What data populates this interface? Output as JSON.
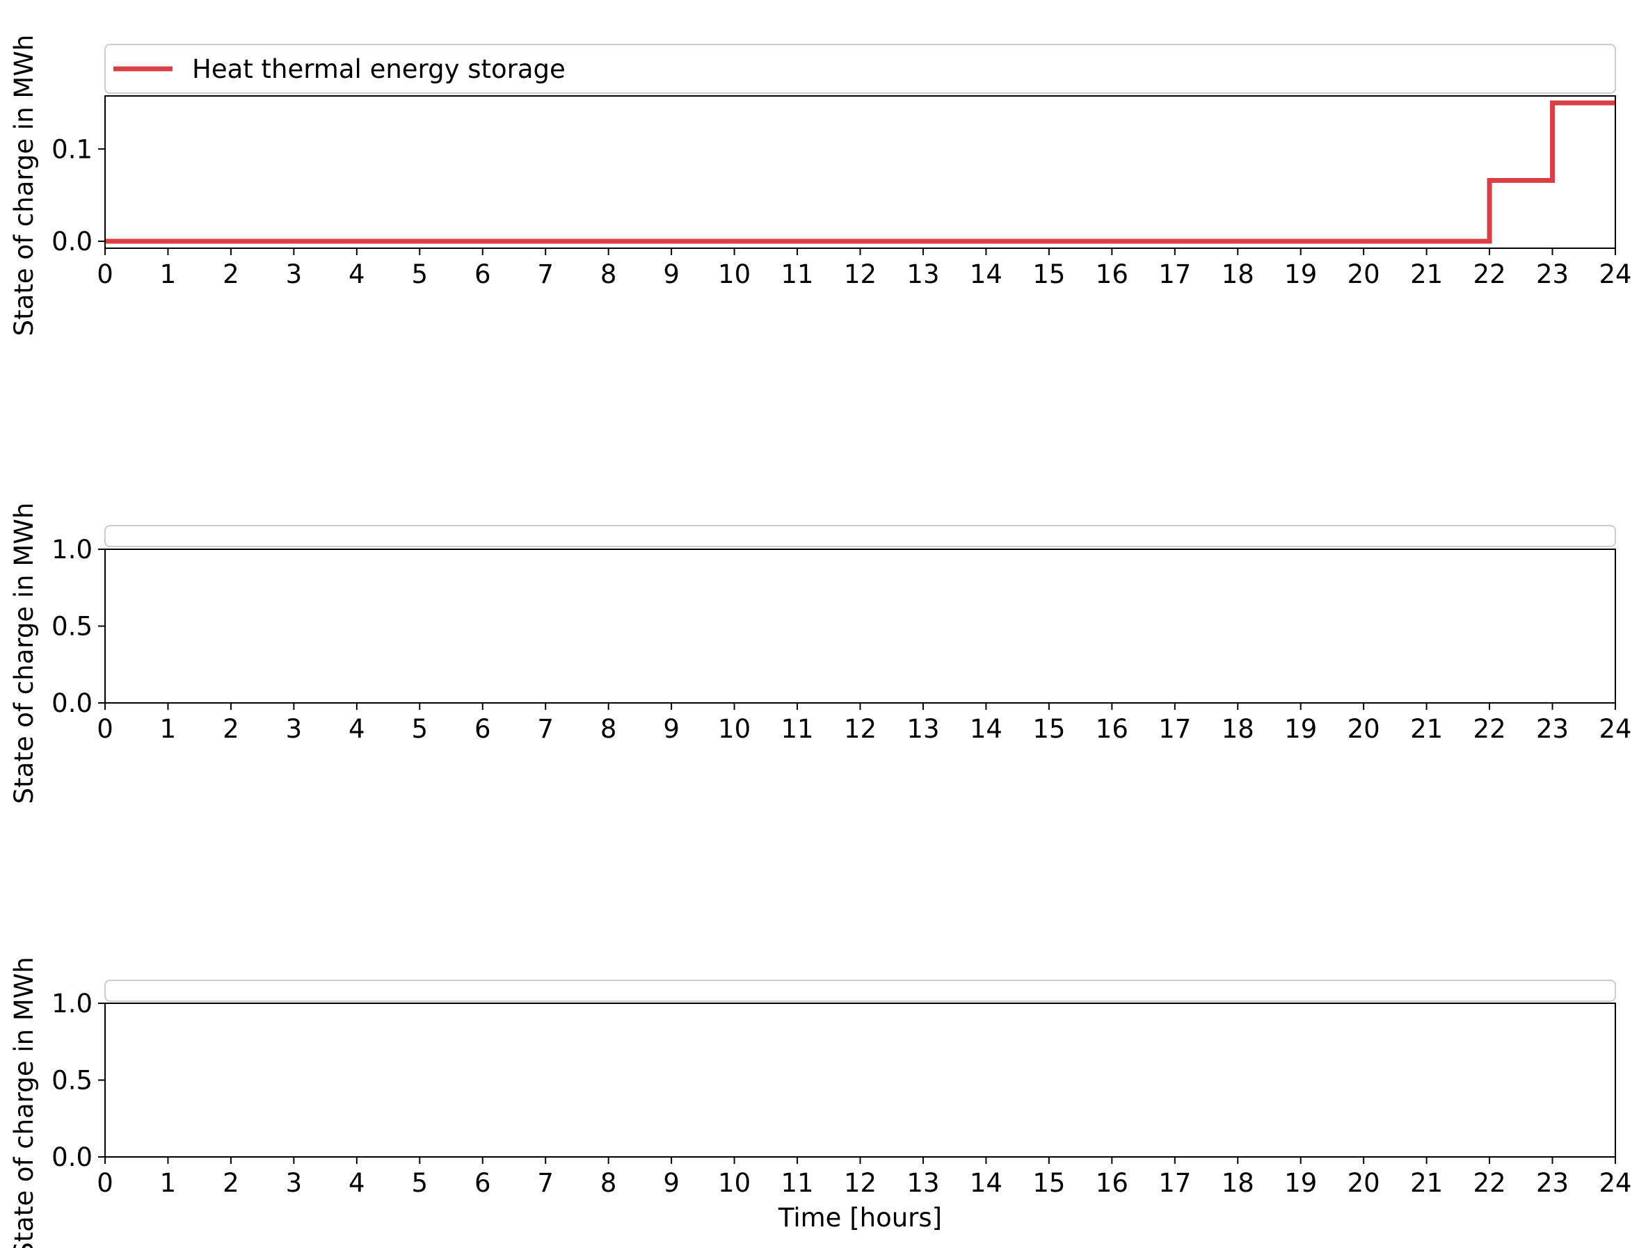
{
  "chart_data": [
    {
      "type": "line",
      "step": true,
      "xlabel": "",
      "ylabel": "State of charge in MWh",
      "xlim": [
        0,
        24
      ],
      "ylim": [
        -0.0075,
        0.1575
      ],
      "xticks": [
        0,
        1,
        2,
        3,
        4,
        5,
        6,
        7,
        8,
        9,
        10,
        11,
        12,
        13,
        14,
        15,
        16,
        17,
        18,
        19,
        20,
        21,
        22,
        23,
        24
      ],
      "yticks": [
        0.0,
        0.1
      ],
      "ytick_labels": [
        "0.0",
        "0.1"
      ],
      "legend": "top",
      "series": [
        {
          "name": "Heat thermal energy storage",
          "color": "#d94045",
          "x": [
            0,
            1,
            2,
            3,
            4,
            5,
            6,
            7,
            8,
            9,
            10,
            11,
            12,
            13,
            14,
            15,
            16,
            17,
            18,
            19,
            20,
            21,
            22,
            23,
            24
          ],
          "values": [
            0,
            0,
            0,
            0,
            0,
            0,
            0,
            0,
            0,
            0,
            0,
            0,
            0,
            0,
            0,
            0,
            0,
            0,
            0,
            0,
            0,
            0,
            0.066,
            0.15,
            0.15
          ]
        }
      ]
    },
    {
      "type": "line",
      "xlabel": "",
      "ylabel": "State of charge in MWh",
      "xlim": [
        0,
        24
      ],
      "ylim": [
        0,
        1
      ],
      "xticks": [
        0,
        1,
        2,
        3,
        4,
        5,
        6,
        7,
        8,
        9,
        10,
        11,
        12,
        13,
        14,
        15,
        16,
        17,
        18,
        19,
        20,
        21,
        22,
        23,
        24
      ],
      "yticks": [
        0.0,
        0.5,
        1.0
      ],
      "ytick_labels": [
        "0.0",
        "0.5",
        "1.0"
      ],
      "legend": "top",
      "series": []
    },
    {
      "type": "line",
      "xlabel": "Time [hours]",
      "ylabel": "State of charge in MWh",
      "xlim": [
        0,
        24
      ],
      "ylim": [
        0,
        1
      ],
      "xticks": [
        0,
        1,
        2,
        3,
        4,
        5,
        6,
        7,
        8,
        9,
        10,
        11,
        12,
        13,
        14,
        15,
        16,
        17,
        18,
        19,
        20,
        21,
        22,
        23,
        24
      ],
      "yticks": [
        0.0,
        0.5,
        1.0
      ],
      "ytick_labels": [
        "0.0",
        "0.5",
        "1.0"
      ],
      "legend": "top",
      "series": []
    }
  ]
}
